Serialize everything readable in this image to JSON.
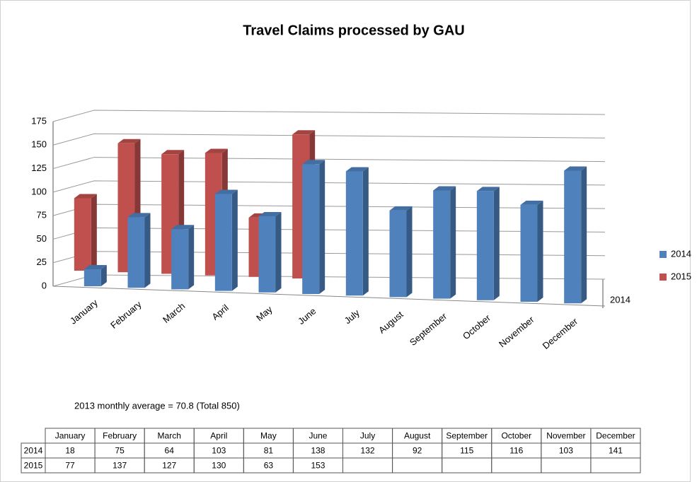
{
  "chart_data": {
    "type": "bar3d",
    "title": "Travel Claims processed by GAU",
    "categories": [
      "January",
      "February",
      "March",
      "April",
      "May",
      "June",
      "July",
      "August",
      "September",
      "October",
      "November",
      "December"
    ],
    "series": [
      {
        "name": "2014",
        "color": "#4f81bd",
        "values": [
          18,
          75,
          64,
          103,
          81,
          138,
          132,
          92,
          115,
          116,
          103,
          141
        ]
      },
      {
        "name": "2015",
        "color": "#c0504d",
        "values": [
          77,
          137,
          127,
          130,
          63,
          153,
          null,
          null,
          null,
          null,
          null,
          null
        ]
      }
    ],
    "depth_label": "2014",
    "ylim": [
      0,
      175
    ],
    "yticks": [
      0,
      25,
      50,
      75,
      100,
      125,
      150,
      175
    ],
    "grid": true,
    "legend": "right",
    "annotation": "2013 monthly average = 70.8 (Total 850)",
    "table": true
  }
}
